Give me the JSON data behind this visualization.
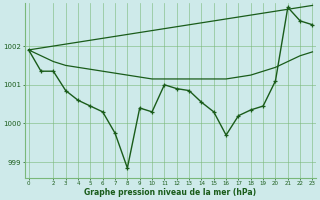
{
  "xlabel": "Graphe pression niveau de la mer (hPa)",
  "bg_color": "#ceeaea",
  "grid_color": "#7ab87a",
  "line_color": "#1a5c1a",
  "ylim": [
    998.6,
    1003.1
  ],
  "yticks": [
    999,
    1000,
    1001,
    1002
  ],
  "xticks": [
    0,
    2,
    3,
    4,
    5,
    6,
    7,
    8,
    9,
    10,
    11,
    12,
    13,
    14,
    15,
    16,
    17,
    18,
    19,
    20,
    21,
    22,
    23
  ],
  "x_main": [
    0,
    1,
    2,
    3,
    4,
    5,
    6,
    7,
    8,
    9,
    10,
    11,
    12,
    13,
    14,
    15,
    16,
    17,
    18,
    19,
    20,
    21,
    22,
    23
  ],
  "y_main": [
    1001.9,
    1001.35,
    1001.35,
    1000.85,
    1000.6,
    1000.45,
    1000.3,
    999.75,
    998.85,
    1000.4,
    1000.3,
    1001.0,
    1000.9,
    1000.85,
    1000.55,
    1000.3,
    999.7,
    1000.2,
    1000.35,
    1000.45,
    1001.1,
    1003.0,
    1002.65,
    1002.55
  ],
  "y_trend_upper": [
    1001.9,
    1001.95,
    1002.0,
    1002.05,
    1002.1,
    1002.15,
    1002.2,
    1002.25,
    1002.3,
    1002.35,
    1002.4,
    1002.45,
    1002.5,
    1002.55,
    1002.6,
    1002.65,
    1002.7,
    1002.75,
    1002.8,
    1002.85,
    1002.9,
    1002.95,
    1003.0,
    1003.05
  ],
  "y_trend_lower": [
    1001.9,
    1001.75,
    1001.6,
    1001.5,
    1001.45,
    1001.4,
    1001.35,
    1001.3,
    1001.25,
    1001.2,
    1001.15,
    1001.15,
    1001.15,
    1001.15,
    1001.15,
    1001.15,
    1001.15,
    1001.2,
    1001.25,
    1001.35,
    1001.45,
    1001.6,
    1001.75,
    1001.85
  ]
}
